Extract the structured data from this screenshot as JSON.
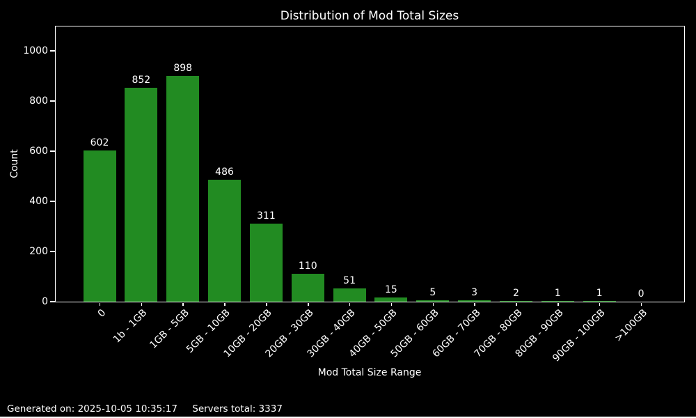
{
  "chart_data": {
    "type": "bar",
    "title": "Distribution of Mod Total Sizes",
    "xlabel": "Mod Total Size Range",
    "ylabel": "Count",
    "categories": [
      "0",
      "1b - 1GB",
      "1GB - 5GB",
      "5GB - 10GB",
      "10GB - 20GB",
      "20GB - 30GB",
      "30GB - 40GB",
      "40GB - 50GB",
      "50GB - 60GB",
      "60GB - 70GB",
      "70GB - 80GB",
      "80GB - 90GB",
      "90GB - 100GB",
      ">100GB"
    ],
    "values": [
      602,
      852,
      898,
      486,
      311,
      110,
      51,
      15,
      5,
      3,
      2,
      1,
      1,
      0
    ],
    "ylim": [
      0,
      1100
    ],
    "yticks": [
      0,
      200,
      400,
      600,
      800,
      1000
    ],
    "x_tick_rotation_deg": 45,
    "grid": "off",
    "legend": "none",
    "bar_value_labels": true,
    "bar_color": "#228B22",
    "background_color": "#000000",
    "text_color": "#ffffff",
    "axis_color": "#ffffff"
  },
  "footer": {
    "generated": "Generated on: 2025-10-05 10:35:17",
    "servers_total": "Servers total: 3337"
  }
}
